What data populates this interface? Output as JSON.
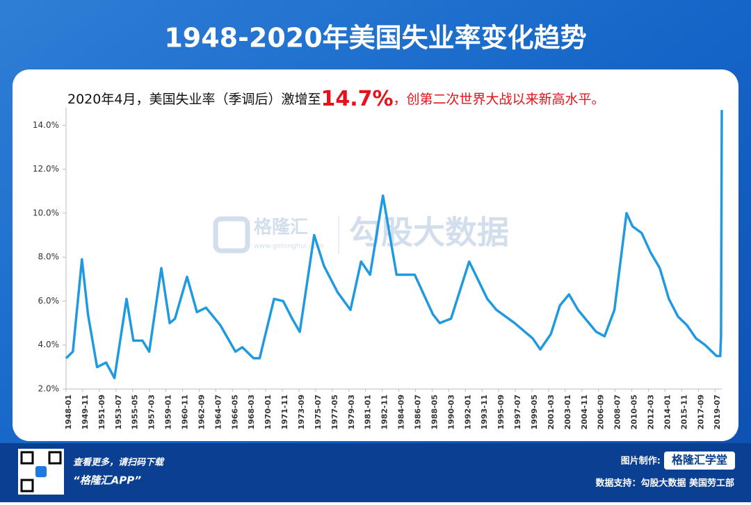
{
  "chart_data": {
    "type": "line",
    "title": "1948-2020年美国失业率变化趋势",
    "subtitle": {
      "lead": "2020年4月，美国失业率（季调后）激增至",
      "highlight": "14.7%",
      "tail": "，创第二次世界大战以来新高水平。"
    },
    "x": [
      "1948-01",
      "1948-10",
      "1949-10",
      "1950-06",
      "1951-06",
      "1952-06",
      "1953-05",
      "1954-09",
      "1955-06",
      "1956-06",
      "1957-03",
      "1958-07",
      "1959-06",
      "1960-01",
      "1961-05",
      "1962-06",
      "1963-06",
      "1965-01",
      "1966-09",
      "1967-06",
      "1968-09",
      "1969-05",
      "1970-12",
      "1971-12",
      "1972-12",
      "1973-10",
      "1975-05",
      "1976-06",
      "1977-12",
      "1979-05",
      "1980-07",
      "1981-07",
      "1982-12",
      "1984-06",
      "1986-06",
      "1988-06",
      "1989-03",
      "1990-06",
      "1992-06",
      "1994-06",
      "1995-06",
      "1997-06",
      "1999-06",
      "2000-04",
      "2001-06",
      "2002-06",
      "2003-06",
      "2004-06",
      "2006-06",
      "2007-05",
      "2008-06",
      "2009-10",
      "2010-06",
      "2011-06",
      "2012-06",
      "2013-06",
      "2014-06",
      "2015-06",
      "2016-06",
      "2017-06",
      "2018-06",
      "2019-09",
      "2020-01",
      "2020-02",
      "2020-03",
      "2020-04"
    ],
    "series": [
      {
        "name": "美国失业率",
        "color": "#1f9ae0",
        "values": [
          3.4,
          3.7,
          7.9,
          5.4,
          3.0,
          3.2,
          2.5,
          6.1,
          4.2,
          4.2,
          3.7,
          7.5,
          5.0,
          5.2,
          7.1,
          5.5,
          5.7,
          4.9,
          3.7,
          3.9,
          3.4,
          3.4,
          6.1,
          6.0,
          5.2,
          4.6,
          9.0,
          7.6,
          6.4,
          5.6,
          7.8,
          7.2,
          10.8,
          7.2,
          7.2,
          5.4,
          5.0,
          5.2,
          7.8,
          6.1,
          5.6,
          5.0,
          4.3,
          3.8,
          4.5,
          5.8,
          6.3,
          5.6,
          4.6,
          4.4,
          5.6,
          10.0,
          9.4,
          9.1,
          8.2,
          7.5,
          6.1,
          5.3,
          4.9,
          4.3,
          4.0,
          3.5,
          3.5,
          3.5,
          4.4,
          14.7
        ]
      }
    ],
    "xticks": [
      "1948-01",
      "1949-11",
      "1951-09",
      "1953-07",
      "1955-05",
      "1957-03",
      "1959-01",
      "1960-11",
      "1962-09",
      "1964-07",
      "1966-05",
      "1968-03",
      "1970-01",
      "1971-11",
      "1973-09",
      "1975-07",
      "1977-05",
      "1979-03",
      "1981-01",
      "1982-11",
      "1984-09",
      "1986-07",
      "1988-05",
      "1990-03",
      "1992-01",
      "1993-11",
      "1995-09",
      "1997-07",
      "1999-05",
      "2001-03",
      "2003-01",
      "2004-11",
      "2006-09",
      "2008-07",
      "2010-05",
      "2012-03",
      "2014-01",
      "2015-11",
      "2017-09",
      "2019-07"
    ],
    "ylim": [
      2,
      14.8
    ],
    "yticks": [
      {
        "value": 2,
        "label": "2.0%"
      },
      {
        "value": 4,
        "label": "4.0%"
      },
      {
        "value": 6,
        "label": "6.0%"
      },
      {
        "value": 8,
        "label": "8.0%"
      },
      {
        "value": 10,
        "label": "10.0%"
      },
      {
        "value": 12,
        "label": "12.0%"
      },
      {
        "value": 14,
        "label": "14.0%"
      }
    ],
    "grid": false
  },
  "watermark": {
    "brand": "格隆汇",
    "url": "www.gelonghui.com",
    "source": "勾股大数据"
  },
  "footer": {
    "scan": "查看更多，请扫码下载",
    "app": "“格隆汇APP”",
    "made_by": "图片制作:",
    "maker": "格隆汇学堂",
    "data_source": "数据支持：勾股大数据 美国劳工部"
  }
}
